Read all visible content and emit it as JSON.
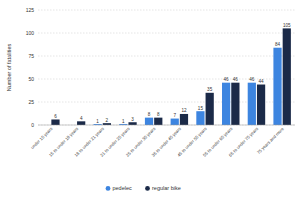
{
  "chart_data": {
    "type": "bar",
    "y_label": "Number of fatalities",
    "categories": [
      "under 15 years",
      "15 to under 18 years",
      "18 to under 21 years",
      "21 to under 25 years",
      "25 to under 35 years",
      "35 to under 45 years",
      "45 to under 55 years",
      "55 to under 65 years",
      "65 to under 75 years",
      "75 years and more"
    ],
    "series": [
      {
        "name": "pedelec",
        "color": "#3d85e0",
        "values": [
          null,
          null,
          1,
          1,
          8,
          7,
          15,
          46,
          46,
          84
        ]
      },
      {
        "name": "regular bike",
        "color": "#1b2a48",
        "values": [
          6,
          4,
          2,
          3,
          8,
          12,
          35,
          46,
          44,
          105
        ]
      }
    ],
    "ylim": [
      0,
      125
    ],
    "yticks": [
      0,
      25,
      50,
      75,
      100,
      125
    ],
    "grid": true,
    "legend": "bottom",
    "data_labels": true
  }
}
